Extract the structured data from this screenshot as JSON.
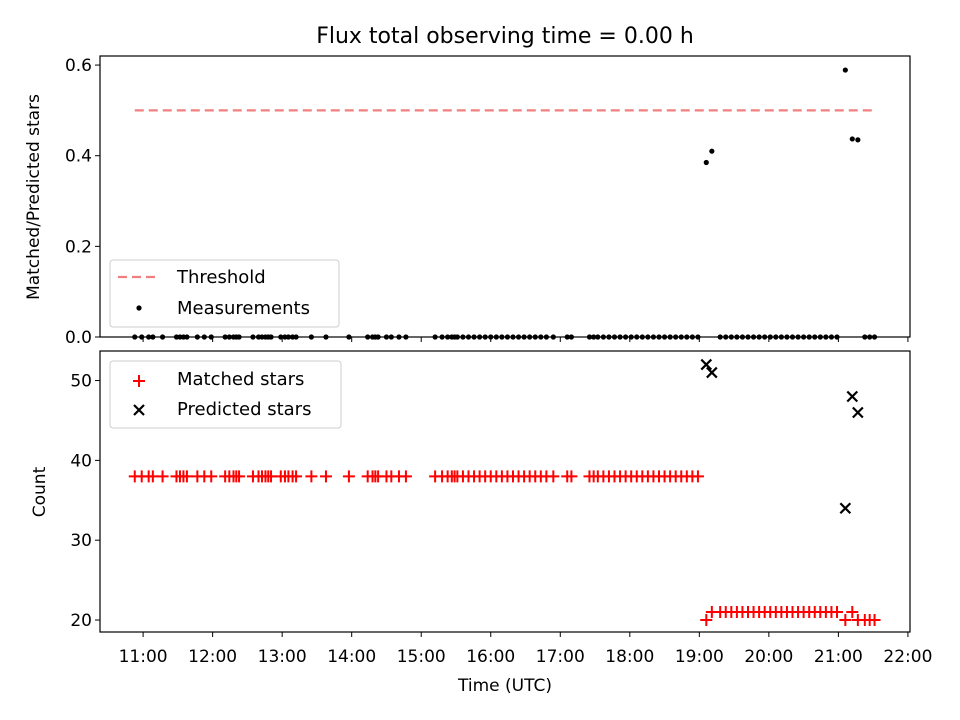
{
  "chart_data": {
    "type": "scatter",
    "title": "Flux total observing time = 0.00 h",
    "xlabel": "Time (UTC)",
    "x_units": "hours UTC",
    "xlim": [
      10.38,
      22.03
    ],
    "x_ticks": [
      11,
      12,
      13,
      14,
      15,
      16,
      17,
      18,
      19,
      20,
      21,
      22
    ],
    "x_tick_labels": [
      "11:00",
      "12:00",
      "13:00",
      "14:00",
      "15:00",
      "16:00",
      "17:00",
      "18:00",
      "19:00",
      "20:00",
      "21:00",
      "22:00"
    ],
    "panels": [
      {
        "name": "ratio",
        "ylabel": "Matched/Predicted stars",
        "ylim": [
          0,
          0.62
        ],
        "y_ticks": [
          0.0,
          0.2,
          0.4,
          0.6
        ],
        "y_tick_labels": [
          "0.0",
          "0.2",
          "0.4",
          "0.6"
        ],
        "legend_position": "lower-left",
        "threshold": {
          "name": "Threshold",
          "value": 0.5,
          "x_start": 10.88,
          "x_end": 21.52,
          "color": "#f08080"
        },
        "measurements": {
          "name": "Measurements",
          "color": "#000000",
          "x": [
            10.88,
            10.98,
            11.08,
            11.14,
            11.28,
            11.48,
            11.53,
            11.58,
            11.63,
            11.78,
            11.88,
            11.98,
            12.18,
            12.24,
            12.3,
            12.34,
            12.38,
            12.58,
            12.66,
            12.71,
            12.76,
            12.8,
            12.84,
            12.98,
            13.04,
            13.09,
            13.15,
            13.2,
            13.42,
            13.63,
            13.96,
            14.23,
            14.3,
            14.34,
            14.38,
            14.5,
            14.57,
            14.68,
            14.78,
            15.2,
            15.3,
            15.38,
            15.44,
            15.48,
            15.52,
            15.6,
            15.68,
            15.76,
            15.84,
            15.92,
            16.0,
            16.08,
            16.16,
            16.24,
            16.32,
            16.4,
            16.48,
            16.56,
            16.64,
            16.72,
            16.8,
            16.9,
            17.1,
            17.16,
            17.42,
            17.48,
            17.54,
            17.62,
            17.7,
            17.78,
            17.86,
            17.94,
            18.02,
            18.1,
            18.18,
            18.26,
            18.34,
            18.42,
            18.5,
            18.58,
            18.66,
            18.74,
            18.82,
            18.9,
            18.98,
            19.1,
            19.18,
            19.3,
            19.38,
            19.46,
            19.54,
            19.62,
            19.7,
            19.78,
            19.86,
            19.94,
            20.02,
            20.1,
            20.18,
            20.26,
            20.34,
            20.42,
            20.5,
            20.58,
            20.66,
            20.74,
            20.82,
            20.9,
            20.98,
            21.1,
            21.2,
            21.28,
            21.38,
            21.45,
            21.52
          ],
          "y": [
            0,
            0,
            0,
            0,
            0,
            0,
            0,
            0,
            0,
            0,
            0,
            0,
            0,
            0,
            0,
            0,
            0,
            0,
            0,
            0,
            0,
            0,
            0,
            0,
            0,
            0,
            0,
            0,
            0,
            0,
            0,
            0,
            0,
            0,
            0,
            0,
            0,
            0,
            0,
            0,
            0,
            0,
            0,
            0,
            0,
            0,
            0,
            0,
            0,
            0,
            0,
            0,
            0,
            0,
            0,
            0,
            0,
            0,
            0,
            0,
            0,
            0,
            0,
            0,
            0,
            0,
            0,
            0,
            0,
            0,
            0,
            0,
            0,
            0,
            0,
            0,
            0,
            0,
            0,
            0,
            0,
            0,
            0,
            0,
            0,
            0.385,
            0.41,
            0,
            0,
            0,
            0,
            0,
            0,
            0,
            0,
            0,
            0,
            0,
            0,
            0,
            0,
            0,
            0,
            0,
            0,
            0,
            0,
            0,
            0,
            0.589,
            0.437,
            0.435,
            0,
            0,
            0
          ]
        }
      },
      {
        "name": "count",
        "ylabel": "Count",
        "ylim": [
          18.5,
          53.7
        ],
        "y_ticks": [
          20,
          30,
          40,
          50
        ],
        "y_tick_labels": [
          "20",
          "30",
          "40",
          "50"
        ],
        "legend_position": "upper-left",
        "series": [
          {
            "name": "Matched stars",
            "marker": "plus",
            "color": "#ff0000",
            "x": [
              10.88,
              10.98,
              11.08,
              11.14,
              11.28,
              11.48,
              11.53,
              11.58,
              11.63,
              11.78,
              11.88,
              11.98,
              12.18,
              12.24,
              12.3,
              12.34,
              12.38,
              12.58,
              12.66,
              12.71,
              12.76,
              12.8,
              12.84,
              12.98,
              13.04,
              13.09,
              13.15,
              13.2,
              13.42,
              13.63,
              13.96,
              14.23,
              14.3,
              14.34,
              14.38,
              14.5,
              14.57,
              14.68,
              14.78,
              15.2,
              15.3,
              15.38,
              15.44,
              15.48,
              15.52,
              15.6,
              15.68,
              15.76,
              15.84,
              15.92,
              16.0,
              16.08,
              16.16,
              16.24,
              16.32,
              16.4,
              16.48,
              16.56,
              16.64,
              16.72,
              16.8,
              16.9,
              17.1,
              17.16,
              17.42,
              17.48,
              17.54,
              17.62,
              17.7,
              17.78,
              17.86,
              17.94,
              18.02,
              18.1,
              18.18,
              18.26,
              18.34,
              18.42,
              18.5,
              18.58,
              18.66,
              18.74,
              18.82,
              18.9,
              18.98,
              19.1,
              19.18,
              19.3,
              19.38,
              19.46,
              19.54,
              19.62,
              19.7,
              19.78,
              19.86,
              19.94,
              20.02,
              20.1,
              20.18,
              20.26,
              20.34,
              20.42,
              20.5,
              20.58,
              20.66,
              20.74,
              20.82,
              20.9,
              20.98,
              21.1,
              21.2,
              21.28,
              21.38,
              21.45,
              21.52
            ],
            "y": [
              38,
              38,
              38,
              38,
              38,
              38,
              38,
              38,
              38,
              38,
              38,
              38,
              38,
              38,
              38,
              38,
              38,
              38,
              38,
              38,
              38,
              38,
              38,
              38,
              38,
              38,
              38,
              38,
              38,
              38,
              38,
              38,
              38,
              38,
              38,
              38,
              38,
              38,
              38,
              38,
              38,
              38,
              38,
              38,
              38,
              38,
              38,
              38,
              38,
              38,
              38,
              38,
              38,
              38,
              38,
              38,
              38,
              38,
              38,
              38,
              38,
              38,
              38,
              38,
              38,
              38,
              38,
              38,
              38,
              38,
              38,
              38,
              38,
              38,
              38,
              38,
              38,
              38,
              38,
              38,
              38,
              38,
              38,
              38,
              38,
              20,
              21,
              21,
              21,
              21,
              21,
              21,
              21,
              21,
              21,
              21,
              21,
              21,
              21,
              21,
              21,
              21,
              21,
              21,
              21,
              21,
              21,
              21,
              21,
              20,
              21,
              20,
              20,
              20,
              20
            ]
          },
          {
            "name": "Predicted stars",
            "marker": "x",
            "color": "#000000",
            "x": [
              19.1,
              19.18,
              21.1,
              21.2,
              21.28
            ],
            "y": [
              52,
              51,
              34,
              48,
              46
            ]
          }
        ]
      }
    ]
  }
}
